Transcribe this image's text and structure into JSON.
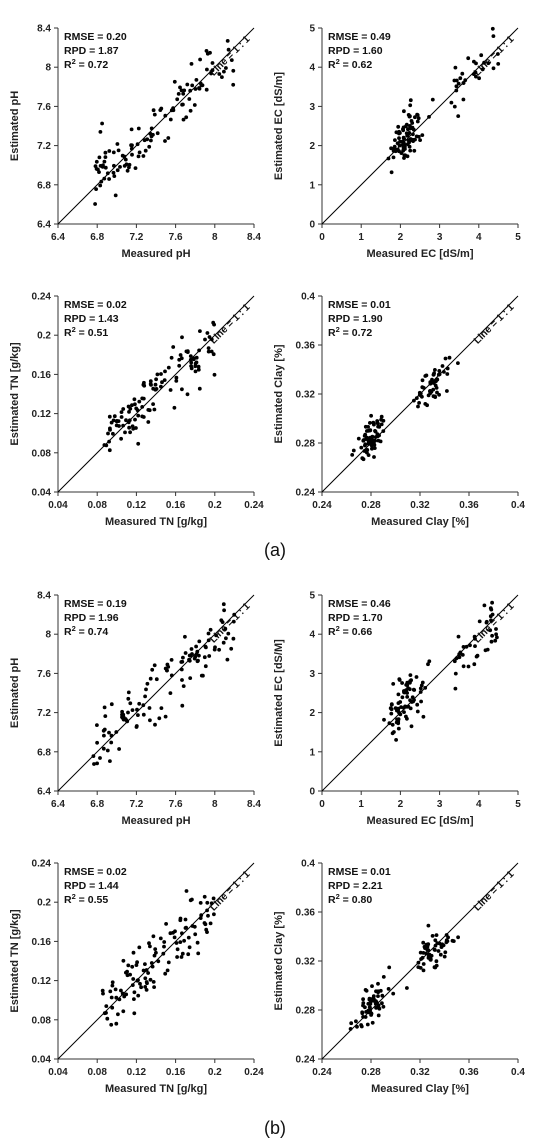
{
  "colors": {
    "points": "#000000",
    "axes": "#333333",
    "line": "#000000"
  },
  "panel_labels": [
    "(a)",
    "(b)"
  ],
  "chart_data": [
    {
      "type": "scatter",
      "group": 0,
      "row": 0,
      "col": 0,
      "xlabel": "Measured pH",
      "ylabel": "Estimated pH",
      "xlim": [
        6.4,
        8.4
      ],
      "ylim": [
        6.4,
        8.4
      ],
      "xticks": [
        "6.4",
        "6.8",
        "7.2",
        "7.6",
        "8",
        "8.4"
      ],
      "yticks": [
        "6.4",
        "6.8",
        "7.2",
        "7.6",
        "8",
        "8.4"
      ],
      "stats": [
        "RMSE = 0.20",
        "RPD = 1.87",
        "R2 = 0.72"
      ],
      "line_label": "Line = 1 : 1",
      "n_points": 115,
      "seed": 11
    },
    {
      "type": "scatter",
      "group": 0,
      "row": 0,
      "col": 1,
      "xlabel": "Measured EC [dS/m]",
      "ylabel": "Estimated EC [dS/m]",
      "xlim": [
        0,
        5
      ],
      "ylim": [
        0,
        5
      ],
      "xticks": [
        "0",
        "1",
        "2",
        "3",
        "4",
        "5"
      ],
      "yticks": [
        "0",
        "1",
        "2",
        "3",
        "4",
        "5"
      ],
      "stats": [
        "RMSE = 0.49",
        "RPD = 1.60",
        "R2 = 0.62"
      ],
      "line_label": "Line = 1 : 1",
      "n_points": 115,
      "seed": 23
    },
    {
      "type": "scatter",
      "group": 0,
      "row": 1,
      "col": 0,
      "xlabel": "Measured TN [g/kg]",
      "ylabel": "Estimated TN [g/kg]",
      "xlim": [
        0.04,
        0.24
      ],
      "ylim": [
        0.04,
        0.24
      ],
      "xticks": [
        "0.04",
        "0.08",
        "0.12",
        "0.16",
        "0.2",
        "0.24"
      ],
      "yticks": [
        "0.04",
        "0.08",
        "0.12",
        "0.16",
        "0.2",
        "0.24"
      ],
      "stats": [
        "RMSE = 0.02",
        "RPD = 1.43",
        "R2 = 0.51"
      ],
      "line_label": "Line = 1 : 1",
      "n_points": 115,
      "seed": 37
    },
    {
      "type": "scatter",
      "group": 0,
      "row": 1,
      "col": 1,
      "xlabel": "Measured Clay [%]",
      "ylabel": "Estimated Clay [%]",
      "xlim": [
        0.24,
        0.4
      ],
      "ylim": [
        0.24,
        0.4
      ],
      "xticks": [
        "0.24",
        "0.28",
        "0.32",
        "0.36",
        "0.4"
      ],
      "yticks": [
        "0.24",
        "0.28",
        "0.32",
        "0.36",
        "0.4"
      ],
      "stats": [
        "RMSE = 0.01",
        "RPD = 1.90",
        "R2 = 0.72"
      ],
      "line_label": "Line = 1 : 1",
      "n_points": 115,
      "seed": 41
    },
    {
      "type": "scatter",
      "group": 1,
      "row": 0,
      "col": 0,
      "xlabel": "Measured pH",
      "ylabel": "Estimated pH",
      "xlim": [
        6.4,
        8.4
      ],
      "ylim": [
        6.4,
        8.4
      ],
      "xticks": [
        "6.4",
        "6.8",
        "7.2",
        "7.6",
        "8",
        "8.4"
      ],
      "yticks": [
        "6.4",
        "6.8",
        "7.2",
        "7.6",
        "8",
        "8.4"
      ],
      "stats": [
        "RMSE = 0.19",
        "RPD = 1.96",
        "R2 = 0.74"
      ],
      "line_label": "Line = 1 : 1",
      "n_points": 115,
      "seed": 53
    },
    {
      "type": "scatter",
      "group": 1,
      "row": 0,
      "col": 1,
      "xlabel": "Measured EC [dS/m]",
      "ylabel": "Estimated EC [dS/M]",
      "xlim": [
        0,
        5
      ],
      "ylim": [
        0,
        5
      ],
      "xticks": [
        "0",
        "1",
        "2",
        "3",
        "4",
        "5"
      ],
      "yticks": [
        "0",
        "1",
        "2",
        "3",
        "4",
        "5"
      ],
      "stats": [
        "RMSE = 0.46",
        "RPD = 1.70",
        "R2 = 0.66"
      ],
      "line_label": "Line = 1 : 1",
      "n_points": 115,
      "seed": 67
    },
    {
      "type": "scatter",
      "group": 1,
      "row": 1,
      "col": 0,
      "xlabel": "Measured TN [g/kg]",
      "ylabel": "Estimated TN [g/kg]",
      "xlim": [
        0.04,
        0.24
      ],
      "ylim": [
        0.04,
        0.24
      ],
      "xticks": [
        "0.04",
        "0.08",
        "0.12",
        "0.16",
        "0.2",
        "0.24"
      ],
      "yticks": [
        "0.04",
        "0.08",
        "0.12",
        "0.16",
        "0.2",
        "0.24"
      ],
      "stats": [
        "RMSE = 0.02",
        "RPD = 1.44",
        "R2 = 0.55"
      ],
      "line_label": "Line = 1 : 1",
      "n_points": 115,
      "seed": 79
    },
    {
      "type": "scatter",
      "group": 1,
      "row": 1,
      "col": 1,
      "xlabel": "Measured Clay [%]",
      "ylabel": "Estimated Clay [%]",
      "xlim": [
        0.24,
        0.4
      ],
      "ylim": [
        0.24,
        0.4
      ],
      "xticks": [
        "0.24",
        "0.28",
        "0.32",
        "0.36",
        "0.4"
      ],
      "yticks": [
        "0.24",
        "0.28",
        "0.32",
        "0.36",
        "0.4"
      ],
      "stats": [
        "RMSE = 0.01",
        "RPD = 2.21",
        "R2 = 0.80"
      ],
      "line_label": "Line = 1 : 1",
      "n_points": 115,
      "seed": 83
    }
  ]
}
